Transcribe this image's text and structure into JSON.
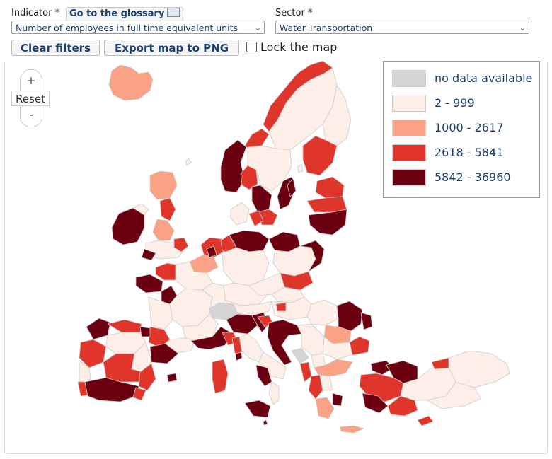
{
  "filters": {
    "indicator_label": "Indicator *",
    "glossary_label": "Go to the glossary",
    "indicator_value": "Number of employees in full time equivalent units",
    "sector_label": "Sector *",
    "sector_value": "Water Transportation"
  },
  "actions": {
    "clear_label": "Clear filters",
    "export_label": "Export map to PNG",
    "lock_label": "Lock the map",
    "lock_checked": false
  },
  "zoom": {
    "in_label": "+",
    "reset_label": "Reset",
    "out_label": "-"
  },
  "legend": {
    "items": [
      {
        "label": "no data available",
        "color": "#d4d4d4"
      },
      {
        "label": "2 - 999",
        "color": "#fdeee7"
      },
      {
        "label": "1000 - 2617",
        "color": "#f9a285"
      },
      {
        "label": "2618 - 5841",
        "color": "#e0352b"
      },
      {
        "label": "5842 - 36960",
        "color": "#6b0010"
      }
    ]
  },
  "map": {
    "border_color": "#cccccc"
  }
}
